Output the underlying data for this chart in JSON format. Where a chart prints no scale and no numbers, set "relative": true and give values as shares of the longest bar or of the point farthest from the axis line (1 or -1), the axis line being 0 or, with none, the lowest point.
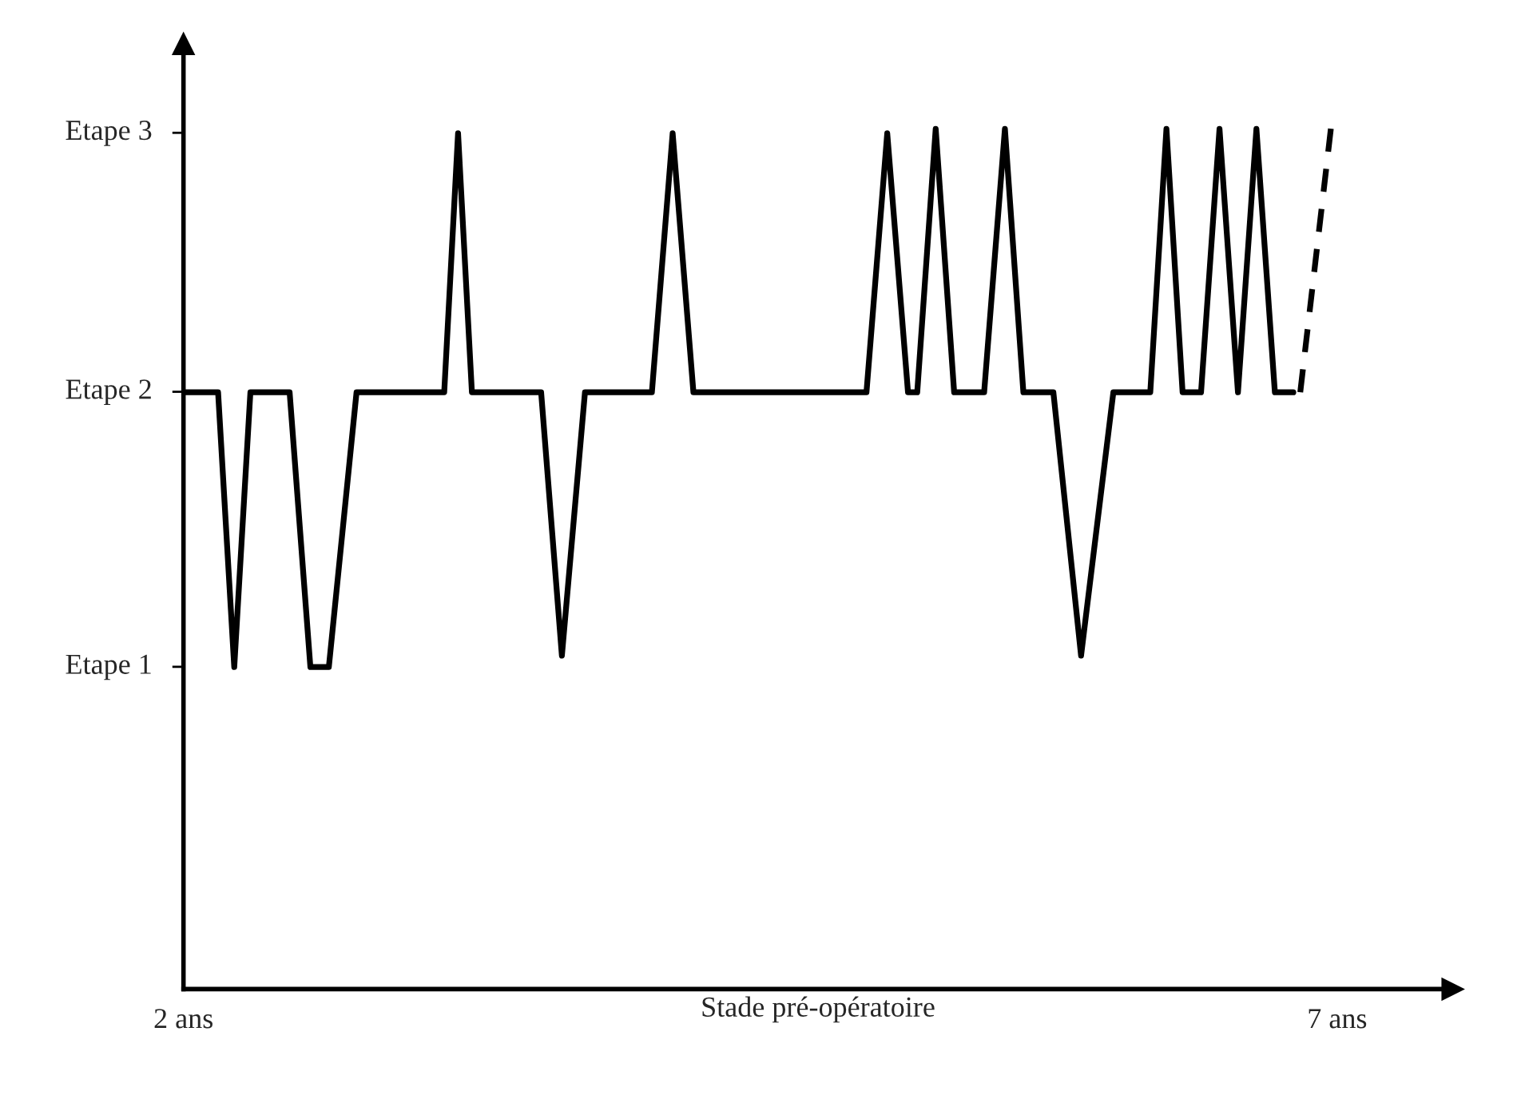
{
  "chart_data": {
    "type": "line",
    "xlabel": "Stade pré-opératoire",
    "relative": true,
    "xlim": [
      2,
      7.5
    ],
    "xticks": [
      {
        "value": 2,
        "label": "2 ans"
      },
      {
        "value": 7,
        "label": "7 ans"
      }
    ],
    "annotations": [
      "Etape 1",
      "Etape 2",
      "Etape 3"
    ],
    "grid": false,
    "legend": false,
    "marker": "none",
    "series": [
      {
        "color": "#000000",
        "line_style": "solid",
        "x": [
          2.0,
          2.15,
          2.22,
          2.29,
          2.46,
          2.55,
          2.63,
          2.75,
          3.13,
          3.19,
          3.25,
          3.55,
          3.64,
          3.74,
          4.03,
          4.12,
          4.21,
          4.96,
          5.05,
          5.14,
          5.18,
          5.26,
          5.34,
          5.47,
          5.56,
          5.64,
          5.77,
          5.89,
          6.03,
          6.19,
          6.26,
          6.33,
          6.41,
          6.49,
          6.57,
          6.65,
          6.73,
          6.81
        ],
        "values": [
          0.682,
          0.682,
          0.368,
          0.682,
          0.682,
          0.368,
          0.368,
          0.682,
          0.682,
          0.978,
          0.682,
          0.682,
          0.381,
          0.682,
          0.682,
          0.978,
          0.682,
          0.682,
          0.978,
          0.682,
          0.682,
          0.983,
          0.682,
          0.682,
          0.983,
          0.682,
          0.682,
          0.381,
          0.682,
          0.682,
          0.983,
          0.682,
          0.682,
          0.983,
          0.682,
          0.983,
          0.682,
          0.682
        ]
      },
      {
        "color": "#000000",
        "line_style": "dashed",
        "x": [
          6.84,
          6.98
        ],
        "values": [
          0.682,
          1
        ]
      }
    ]
  }
}
